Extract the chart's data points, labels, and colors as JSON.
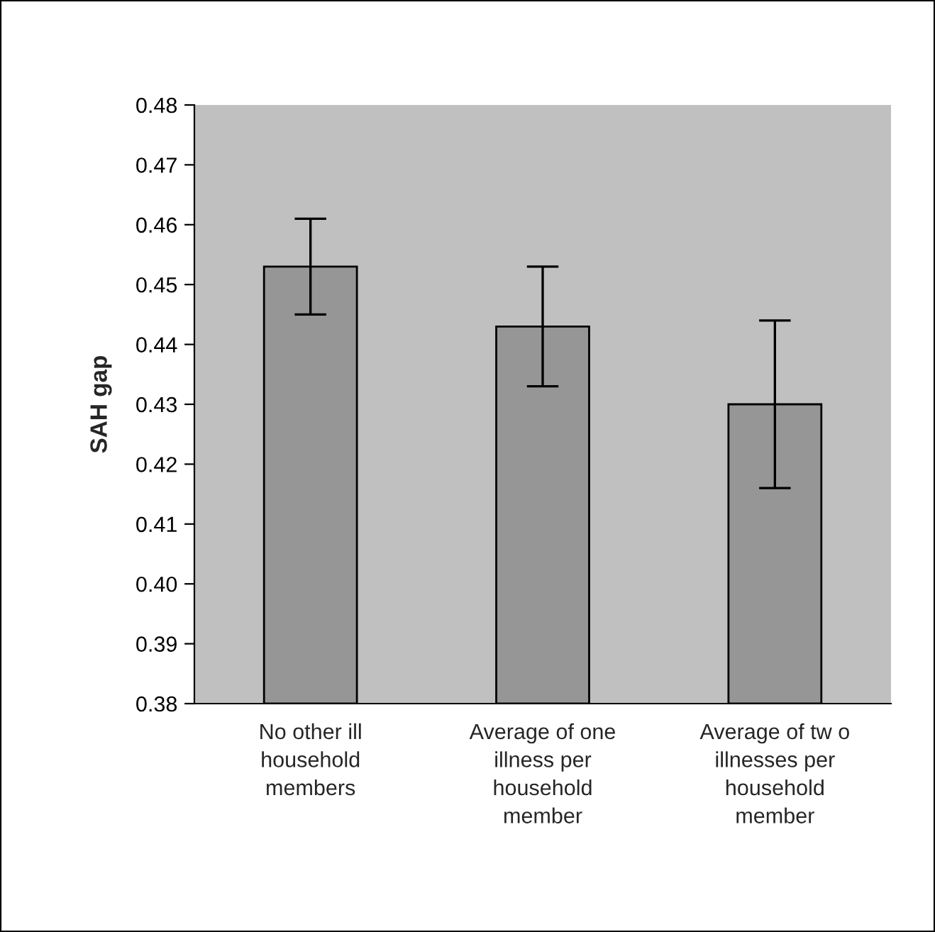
{
  "chart_data": {
    "type": "bar",
    "ylabel": "SAH gap",
    "categories": [
      "No other ill\nhousehold\nmembers",
      "Average of one\nillness per\nhousehold\nmember",
      "Average of tw o\nillnesses per\nhousehold\nmember"
    ],
    "series": [
      {
        "color": "#969696",
        "values": [
          0.453,
          0.443,
          0.43
        ],
        "errors": [
          0.008,
          0.01,
          0.014
        ]
      }
    ],
    "ylim": [
      0.38,
      0.48
    ],
    "yticks": [
      {
        "value": 0.38,
        "label": "0.38"
      },
      {
        "value": 0.39,
        "label": "0.39"
      },
      {
        "value": 0.4,
        "label": "0.40"
      },
      {
        "value": 0.41,
        "label": "0.41"
      },
      {
        "value": 0.42,
        "label": "0.42"
      },
      {
        "value": 0.43,
        "label": "0.43"
      },
      {
        "value": 0.44,
        "label": "0.44"
      },
      {
        "value": 0.45,
        "label": "0.45"
      },
      {
        "value": 0.46,
        "label": "0.46"
      },
      {
        "value": 0.47,
        "label": "0.47"
      },
      {
        "value": 0.48,
        "label": "0.48"
      }
    ],
    "grid": false,
    "legend": false
  }
}
